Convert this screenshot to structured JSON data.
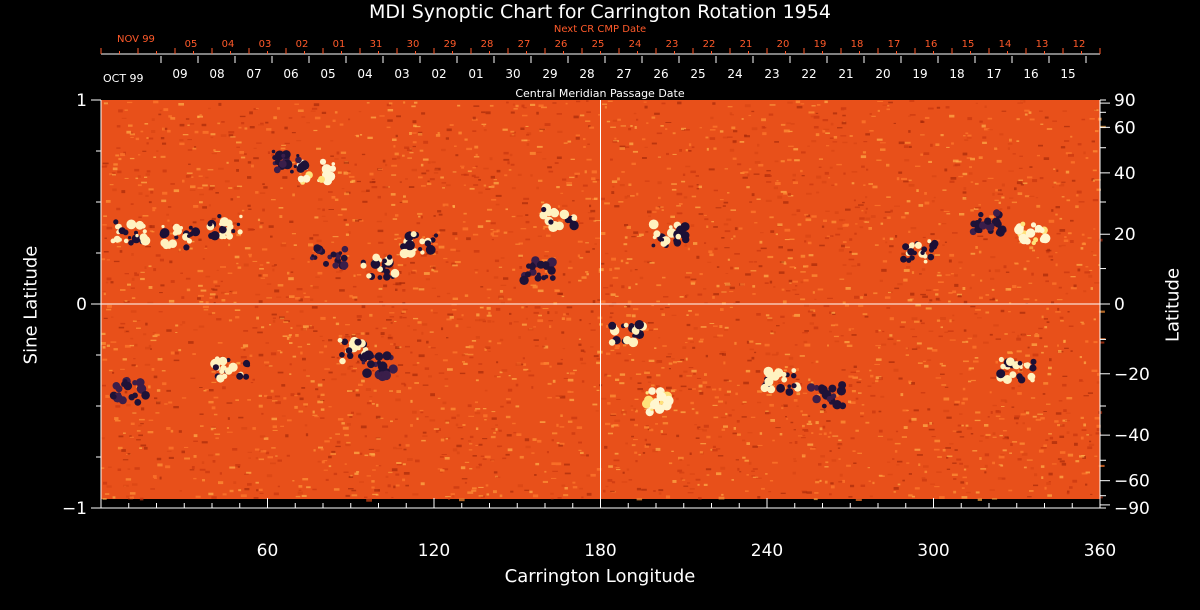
{
  "title": "MDI Synoptic Chart for Carrington Rotation 1954",
  "next_cr_label": "Next CR CMP Date",
  "cmp_label": "Central Meridian Passage Date",
  "colors": {
    "background": "#000000",
    "map_base": "#e8501a",
    "top_dates": "#ff5a2a",
    "axis": "#ffffff"
  },
  "chart_data": {
    "type": "heatmap",
    "title": "MDI Synoptic Chart for Carrington Rotation 1954",
    "xlabel": "Carrington Longitude",
    "ylabel": "Sine Latitude",
    "ylabel_right": "Latitude",
    "xlim": [
      0,
      360
    ],
    "ylim": [
      -1,
      1
    ],
    "x_ticks": [
      60,
      120,
      180,
      240,
      300,
      360
    ],
    "y_ticks_left": [
      {
        "value": 1,
        "label": "1"
      },
      {
        "value": 0,
        "label": "0"
      },
      {
        "value": -1,
        "label": "−1"
      }
    ],
    "y_ticks_right": [
      90,
      60,
      40,
      20,
      0,
      -20,
      -40,
      -60,
      -90
    ],
    "grid": {
      "vertical_at": [
        180
      ],
      "horizontal_at": [
        0
      ]
    },
    "next_cr_dates": {
      "first_label": "NOV 99",
      "labels": [
        "05",
        "04",
        "03",
        "02",
        "01",
        "31",
        "30",
        "29",
        "28",
        "27",
        "26",
        "25",
        "24",
        "23",
        "22",
        "21",
        "20",
        "19",
        "18",
        "17",
        "16",
        "15",
        "14",
        "13",
        "12"
      ]
    },
    "cmp_dates": {
      "first_label": "OCT 99",
      "labels": [
        "09",
        "08",
        "07",
        "06",
        "05",
        "04",
        "03",
        "02",
        "01",
        "30",
        "29",
        "28",
        "27",
        "26",
        "25",
        "24",
        "23",
        "22",
        "21",
        "20",
        "19",
        "18",
        "17",
        "16",
        "15"
      ]
    },
    "active_regions": [
      {
        "lon": 10,
        "lat": 0.35,
        "polarity": "mixed"
      },
      {
        "lon": 28,
        "lat": 0.33,
        "polarity": "mixed"
      },
      {
        "lon": 45,
        "lat": 0.38,
        "polarity": "mixed"
      },
      {
        "lon": 78,
        "lat": 0.65,
        "polarity": "positive"
      },
      {
        "lon": 68,
        "lat": 0.7,
        "polarity": "negative"
      },
      {
        "lon": 115,
        "lat": 0.3,
        "polarity": "mixed"
      },
      {
        "lon": 100,
        "lat": 0.18,
        "polarity": "mixed"
      },
      {
        "lon": 82,
        "lat": 0.23,
        "polarity": "negative"
      },
      {
        "lon": 165,
        "lat": 0.42,
        "polarity": "mixed"
      },
      {
        "lon": 157,
        "lat": 0.17,
        "polarity": "negative"
      },
      {
        "lon": 205,
        "lat": 0.34,
        "polarity": "mixed"
      },
      {
        "lon": 295,
        "lat": 0.26,
        "polarity": "mixed"
      },
      {
        "lon": 320,
        "lat": 0.4,
        "polarity": "negative"
      },
      {
        "lon": 335,
        "lat": 0.35,
        "polarity": "positive"
      },
      {
        "lon": 10,
        "lat": -0.43,
        "polarity": "negative"
      },
      {
        "lon": 47,
        "lat": -0.32,
        "polarity": "mixed"
      },
      {
        "lon": 92,
        "lat": -0.23,
        "polarity": "mixed"
      },
      {
        "lon": 100,
        "lat": -0.3,
        "polarity": "negative"
      },
      {
        "lon": 190,
        "lat": -0.15,
        "polarity": "mixed"
      },
      {
        "lon": 245,
        "lat": -0.38,
        "polarity": "mixed"
      },
      {
        "lon": 262,
        "lat": -0.45,
        "polarity": "negative"
      },
      {
        "lon": 330,
        "lat": -0.32,
        "polarity": "mixed"
      },
      {
        "lon": 200,
        "lat": -0.48,
        "polarity": "positive"
      }
    ]
  }
}
